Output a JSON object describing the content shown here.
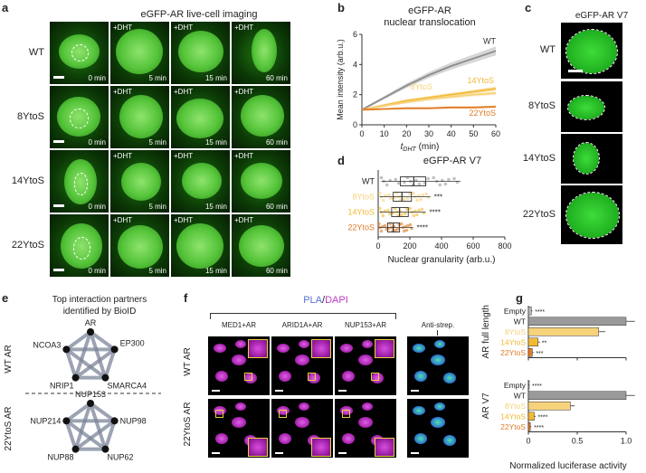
{
  "panel_labels": {
    "a": "a",
    "b": "b",
    "c": "c",
    "d": "d",
    "e": "e",
    "f": "f",
    "g": "g"
  },
  "a": {
    "title": "eGFP-AR live-cell imaging",
    "rows": [
      "WT",
      "8YtoS",
      "14YtoS",
      "22YtoS"
    ],
    "dht_label": "+DHT",
    "times": [
      "0 min",
      "5 min",
      "15 min",
      "60 min"
    ]
  },
  "b": {
    "title_line1": "eGFP-AR",
    "title_line2": "nuclear translocation",
    "chart_data": {
      "type": "line",
      "xlabel": "t",
      "xlabel_sub": "DHT",
      "xlabel_unit": "(min)",
      "ylabel": "Mean intensity (arb.u.)",
      "xlim": [
        0,
        60
      ],
      "ylim": [
        0,
        6
      ],
      "xticks": [
        "0",
        "10",
        "20",
        "30",
        "40",
        "50",
        "60"
      ],
      "yticks": [
        "0",
        "2",
        "4",
        "6"
      ],
      "x": [
        0,
        10,
        20,
        30,
        40,
        50,
        60
      ],
      "series": [
        {
          "name": "WT",
          "values": [
            1.0,
            1.8,
            2.6,
            3.3,
            3.9,
            4.4,
            4.9
          ],
          "color": "#8c8c8c"
        },
        {
          "name": "14YtoS",
          "values": [
            1.0,
            1.3,
            1.6,
            1.8,
            2.0,
            2.2,
            2.4
          ],
          "color": "#f2b935"
        },
        {
          "name": "8YtoS",
          "values": [
            1.0,
            1.25,
            1.5,
            1.7,
            1.85,
            2.0,
            2.1
          ],
          "color": "#f6d27a"
        },
        {
          "name": "22YtoS",
          "values": [
            1.0,
            1.05,
            1.1,
            1.1,
            1.15,
            1.15,
            1.2
          ],
          "color": "#e07b25"
        }
      ]
    }
  },
  "c": {
    "title": "eGFP-AR V7",
    "rows": [
      "WT",
      "8YtoS",
      "14YtoS",
      "22YtoS"
    ]
  },
  "d": {
    "title": "eGFP-AR V7",
    "chart_data": {
      "type": "box",
      "xlabel": "Nuclear granularity (arb.u.)",
      "xlim": [
        0,
        800
      ],
      "xticks": [
        "0",
        "200",
        "400",
        "600",
        "800"
      ],
      "categories": [
        "WT",
        "8YtoS",
        "14YtoS",
        "22YtoS"
      ],
      "colors": [
        "#9a9a9a",
        "#f6d27a",
        "#f2b935",
        "#e07b25"
      ],
      "medians": [
        225,
        150,
        135,
        95
      ],
      "q1": [
        140,
        95,
        85,
        60
      ],
      "q3": [
        300,
        210,
        190,
        135
      ],
      "whisker_low": [
        20,
        10,
        10,
        5
      ],
      "whisker_high": [
        520,
        330,
        300,
        220
      ],
      "significance": [
        "",
        "***",
        "****",
        "****"
      ]
    }
  },
  "e": {
    "title_line1": "Top interaction partners",
    "title_line2": "identified by BioID",
    "wt_label": "WT AR",
    "mut_label": "22YtoS AR",
    "wt_nodes": [
      "AR",
      "EP300",
      "SMARCA4",
      "NRIP1",
      "NCOA3"
    ],
    "mut_nodes": [
      "NUP153",
      "NUP98",
      "NUP62",
      "NUP88",
      "NUP214"
    ]
  },
  "f": {
    "title_pla": "PLA",
    "title_sep": "/",
    "title_dapi": "DAPI",
    "columns": [
      "MED1+AR",
      "ARID1A+AR",
      "NUP153+AR",
      "Anti-strep."
    ],
    "rows": [
      "WT AR",
      "22YtoS AR"
    ]
  },
  "g": {
    "chart_data": {
      "type": "bar",
      "xlabel": "Normalized luciferase activity",
      "xlim": [
        0,
        1.0
      ],
      "xticks": [
        "0",
        "0.5",
        "1.0"
      ],
      "groups": [
        {
          "name": "AR full length",
          "categories": [
            "Empty",
            "WT",
            "8YtoS",
            "14YtoS",
            "22YtoS"
          ],
          "values": [
            0.03,
            1.0,
            0.72,
            0.1,
            0.04
          ],
          "significance": [
            "****",
            "",
            "",
            "**",
            "***"
          ]
        },
        {
          "name": "AR V7",
          "categories": [
            "Empty",
            "WT",
            "8YtoS",
            "14YtoS",
            "22YtoS"
          ],
          "values": [
            0.0,
            1.0,
            0.43,
            0.06,
            0.02
          ],
          "significance": [
            "****",
            "",
            "",
            "****",
            "****"
          ]
        }
      ],
      "colors": {
        "Empty": "#b5b5b5",
        "WT": "#9a9a9a",
        "8YtoS": "#f6d27a",
        "14YtoS": "#f2b935",
        "22YtoS": "#e07b25"
      }
    }
  }
}
